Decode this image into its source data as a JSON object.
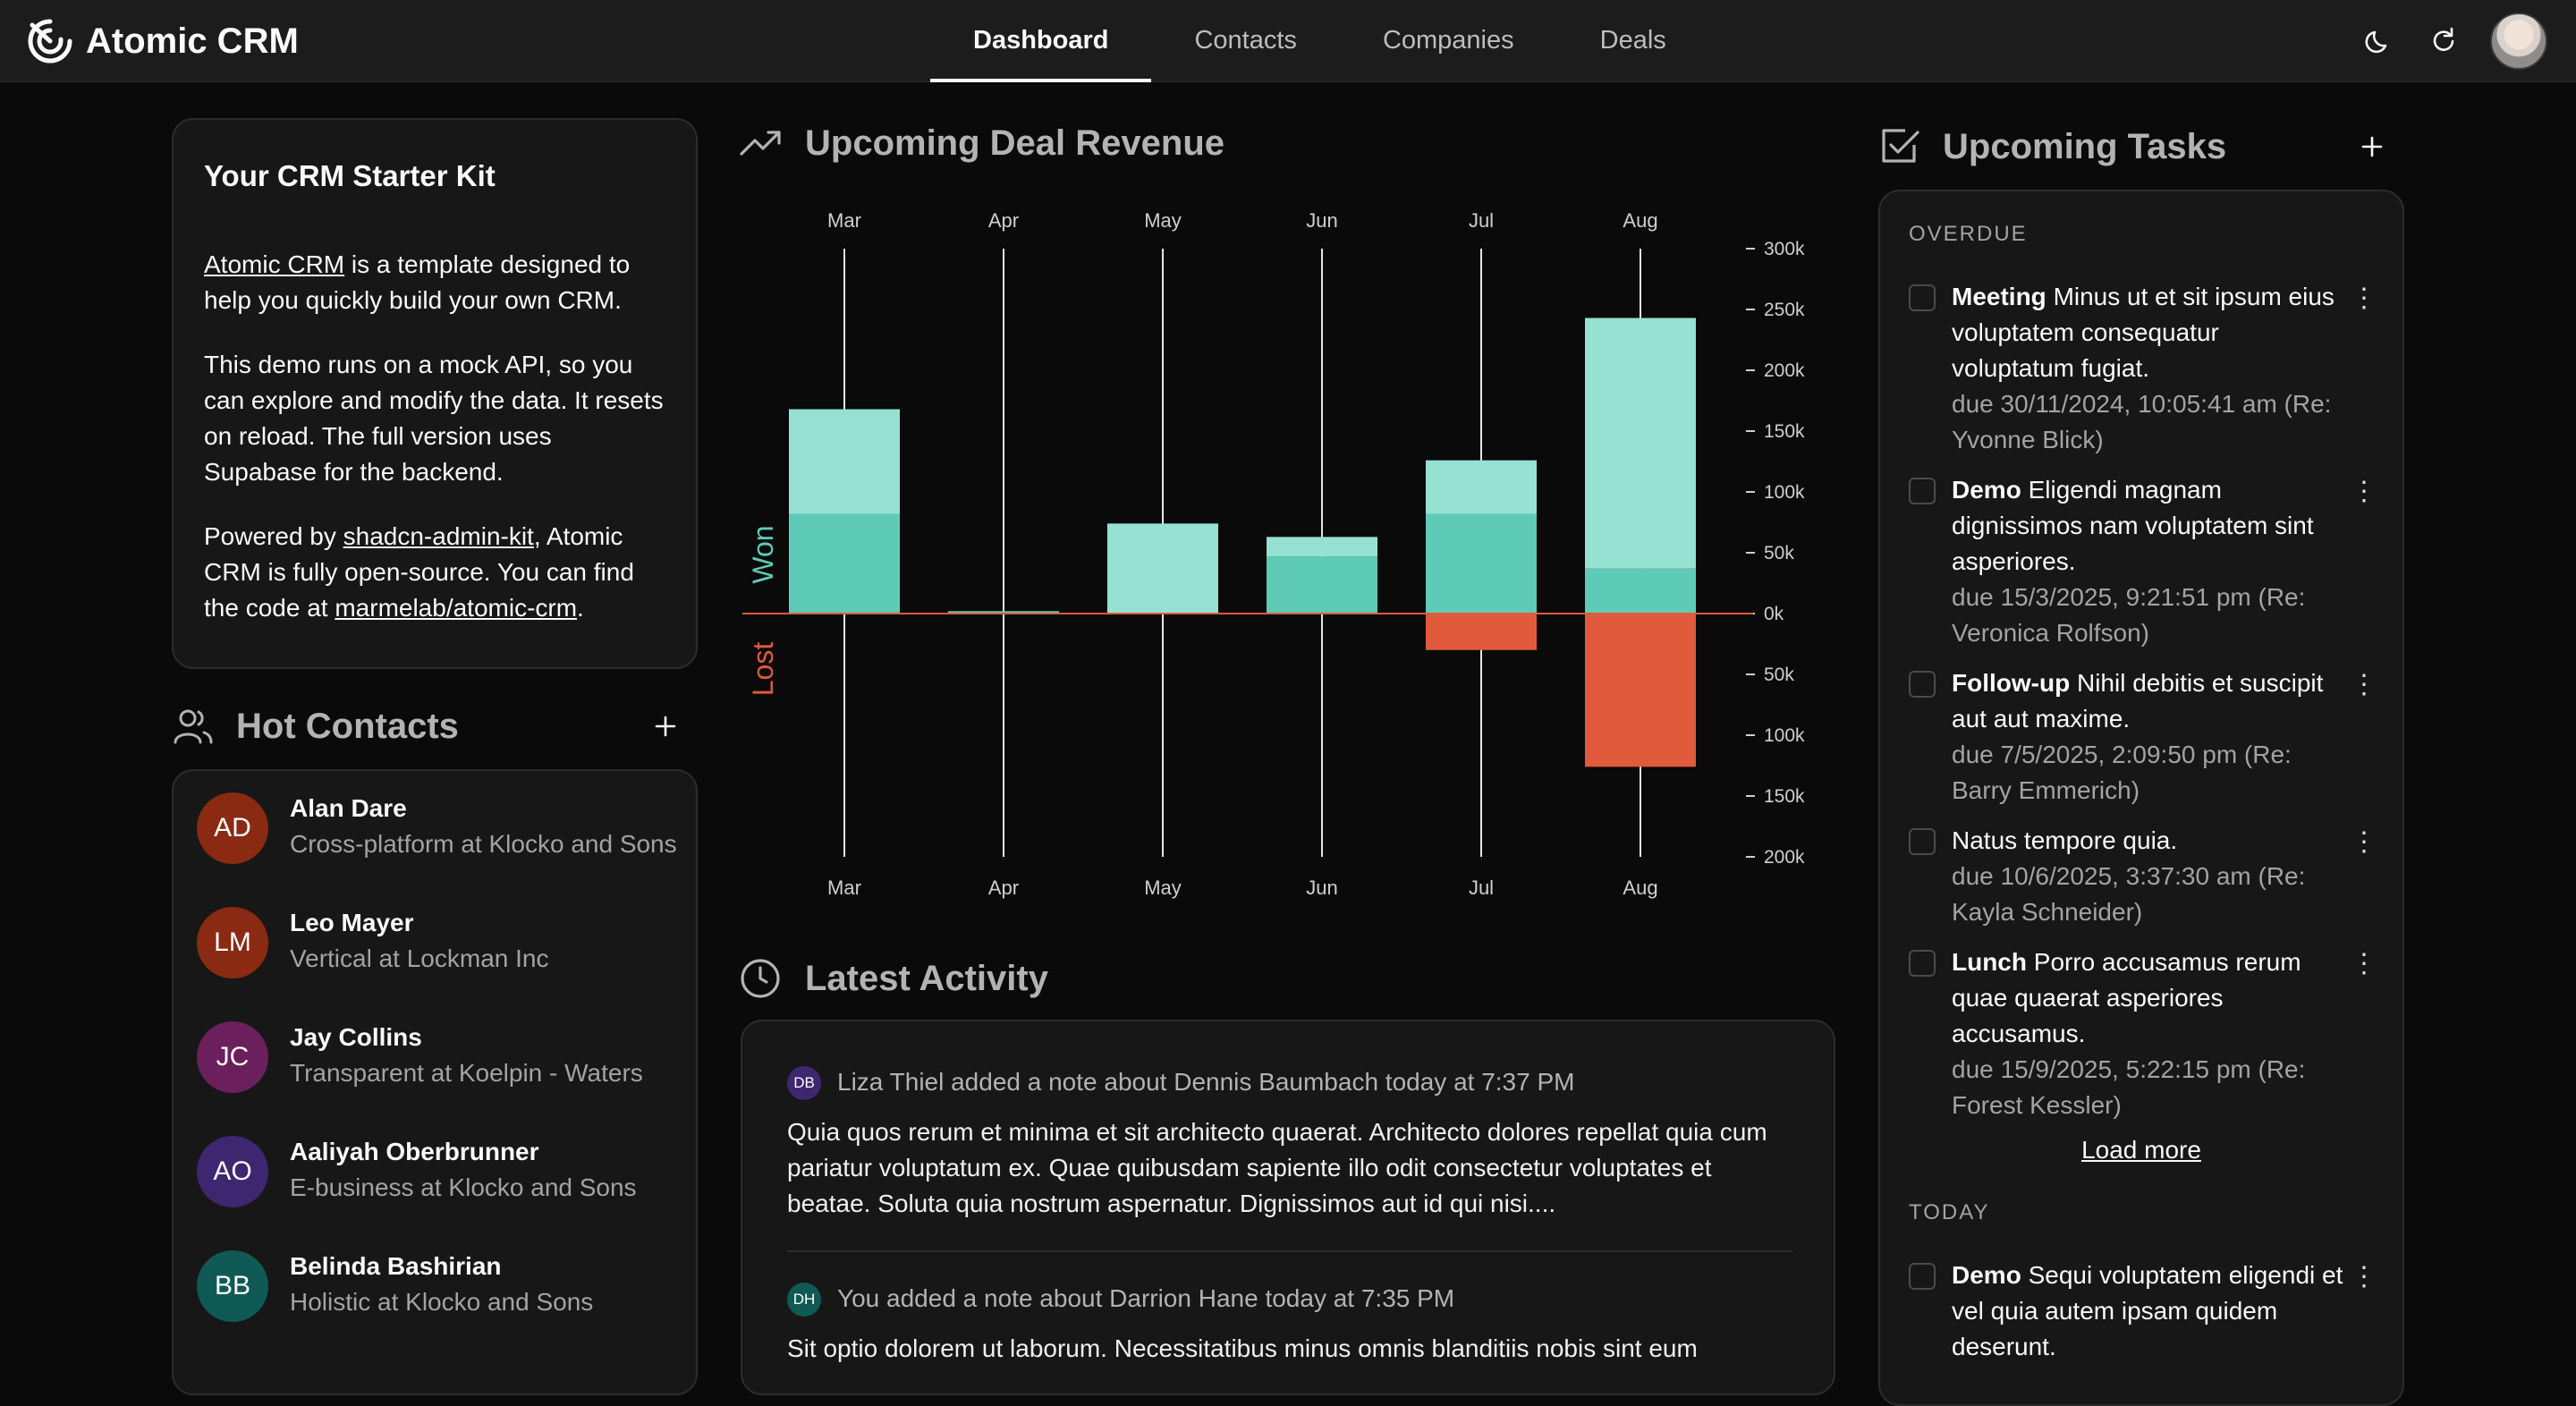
{
  "app": {
    "title": "Atomic CRM"
  },
  "nav": {
    "tabs": [
      "Dashboard",
      "Contacts",
      "Companies",
      "Deals"
    ],
    "active": "Dashboard"
  },
  "starter": {
    "title": "Your CRM Starter Kit",
    "p1_link": "Atomic CRM",
    "p1_rest": " is a template designed to help you quickly build your own CRM.",
    "p2": "This demo runs on a mock API, so you can explore and modify the data. It resets on reload. The full version uses Supabase for the backend.",
    "p3_pre": "Powered by ",
    "p3_link1": "shadcn-admin-kit",
    "p3_mid": ", Atomic CRM is fully open-source. You can find the code at ",
    "p3_link2": "marmelab/atomic-crm",
    "p3_end": "."
  },
  "hot_contacts": {
    "title": "Hot Contacts",
    "items": [
      {
        "initials": "AD",
        "name": "Alan Dare",
        "sub": "Cross-platform at Klocko and Sons",
        "color": "#8a2a12"
      },
      {
        "initials": "LM",
        "name": "Leo Mayer",
        "sub": "Vertical at Lockman Inc",
        "color": "#8a2a12"
      },
      {
        "initials": "JC",
        "name": "Jay Collins",
        "sub": "Transparent at Koelpin - Waters",
        "color": "#6b1f5c"
      },
      {
        "initials": "AO",
        "name": "Aaliyah Oberbrunner",
        "sub": "E-business at Klocko and Sons",
        "color": "#3f2670"
      },
      {
        "initials": "BB",
        "name": "Belinda Bashirian",
        "sub": "Holistic at Klocko and Sons",
        "color": "#0f5a55"
      }
    ]
  },
  "revenue": {
    "title": "Upcoming Deal Revenue",
    "won_label": "Won",
    "lost_label": "Lost",
    "colors": {
      "won_dark": "#5ecbb7",
      "won_light": "#97e1d3",
      "lost": "#e05a3b",
      "axis": "#e05a3b"
    }
  },
  "chart_data": {
    "type": "bar",
    "categories": [
      "Mar",
      "Apr",
      "May",
      "Jun",
      "Jul",
      "Aug"
    ],
    "series": [
      {
        "name": "Won",
        "values": [
          82000,
          2000,
          0,
          47000,
          82000,
          37000
        ]
      },
      {
        "values": [
          86000,
          0,
          74000,
          16000,
          44000,
          206000
        ]
      },
      {
        "name": "Lost",
        "values": [
          0,
          0,
          0,
          0,
          -30000,
          -126000
        ]
      }
    ],
    "yticks": [
      {
        "v": 300000,
        "label": "300k"
      },
      {
        "v": 250000,
        "label": "250k"
      },
      {
        "v": 200000,
        "label": "200k"
      },
      {
        "v": 150000,
        "label": "150k"
      },
      {
        "v": 100000,
        "label": "100k"
      },
      {
        "v": 50000,
        "label": "50k"
      },
      {
        "v": 0,
        "label": "0k"
      },
      {
        "v": -50000,
        "label": "50k"
      },
      {
        "v": -100000,
        "label": "100k"
      },
      {
        "v": -150000,
        "label": "150k"
      },
      {
        "v": -200000,
        "label": "200k"
      }
    ],
    "ylim": [
      -200000,
      300000
    ]
  },
  "activity": {
    "title": "Latest Activity",
    "items": [
      {
        "initials": "DB",
        "badge_color": "#3f2670",
        "header": "Liza Thiel added a note about Dennis Baumbach today at 7:37 PM",
        "text": "Quia quos rerum et minima et sit architecto quaerat. Architecto dolores repellat quia cum pariatur voluptatum ex. Quae quibusdam sapiente illo odit consectetur voluptates et beatae. Soluta quia nostrum aspernatur. Dignissimos aut id qui nisi...."
      },
      {
        "initials": "DH",
        "badge_color": "#0f5a55",
        "header": "You added a note about Darrion Hane today at 7:35 PM",
        "text": "Sit optio dolorem ut laborum. Necessitatibus minus omnis blanditiis nobis sint eum"
      }
    ]
  },
  "tasks": {
    "title": "Upcoming Tasks",
    "overdue_label": "OVERDUE",
    "today_label": "TODAY",
    "load_more": "Load more",
    "overdue": [
      {
        "type": "Meeting",
        "text": "Minus ut et sit ipsum eius voluptatem consequatur voluptatum fugiat.",
        "due": "due 30/11/2024, 10:05:41 am (Re: Yvonne Blick)"
      },
      {
        "type": "Demo",
        "text": "Eligendi magnam dignissimos nam voluptatem sint asperiores.",
        "due": "due 15/3/2025, 9:21:51 pm (Re: Veronica Rolfson)"
      },
      {
        "type": "Follow-up",
        "text": "Nihil debitis et suscipit aut aut maxime.",
        "due": "due 7/5/2025, 2:09:50 pm (Re: Barry Emmerich)"
      },
      {
        "type": "",
        "text": "Natus tempore quia.",
        "due": "due 10/6/2025, 3:37:30 am (Re: Kayla Schneider)"
      },
      {
        "type": "Lunch",
        "text": "Porro accusamus rerum quae quaerat asperiores accusamus.",
        "due": "due 15/9/2025, 5:22:15 pm (Re: Forest Kessler)"
      }
    ],
    "today": [
      {
        "type": "Demo",
        "text": "Sequi voluptatem eligendi et vel quia autem ipsam quidem deserunt.",
        "due": ""
      }
    ]
  }
}
